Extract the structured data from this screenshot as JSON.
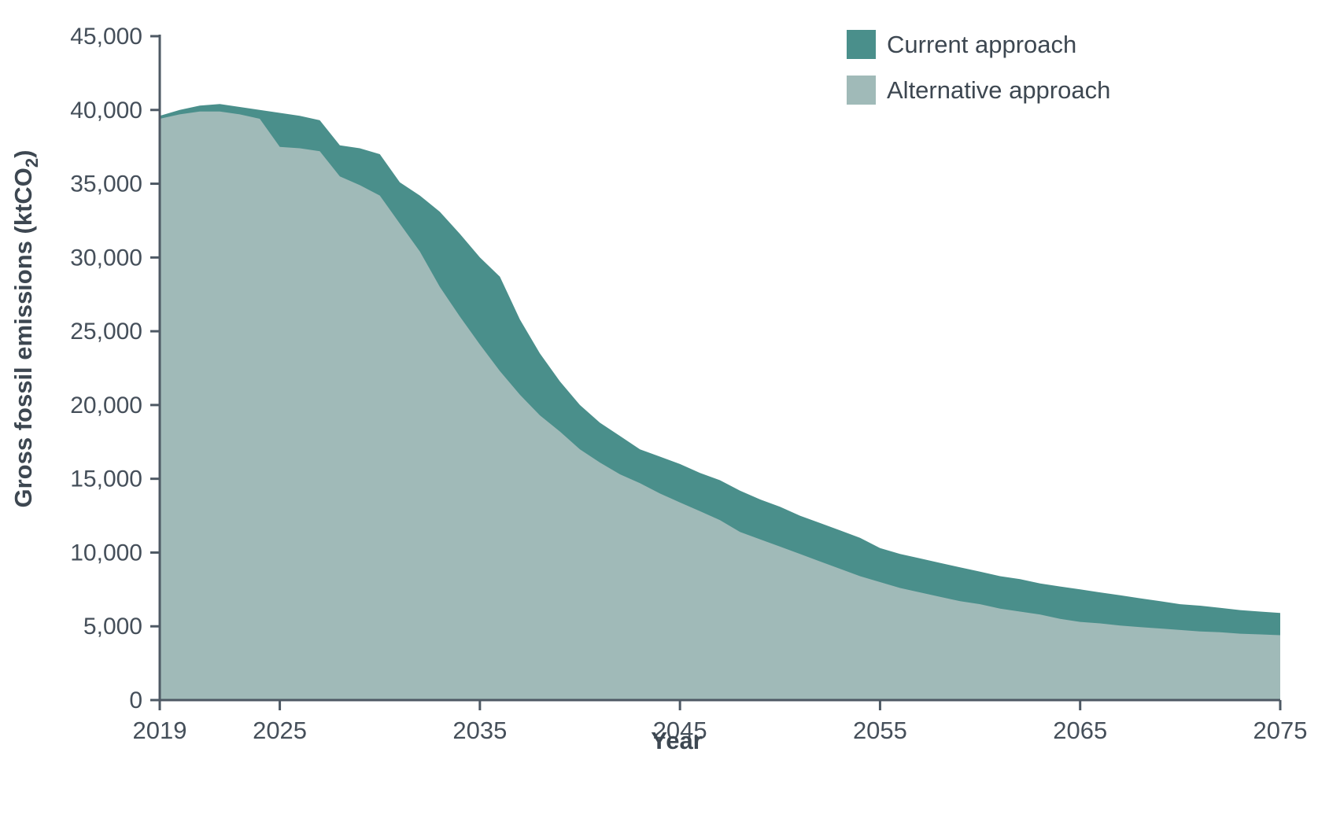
{
  "chart_data": {
    "type": "area",
    "title": "",
    "xlabel": "Year",
    "ylabel": "Gross fossil emissions (ktCO2)",
    "ylabel_parts": {
      "main": "Gross fossil emissions (ktCO",
      "sub": "2",
      "close": ")"
    },
    "xlim": [
      2019,
      2075
    ],
    "ylim": [
      0,
      45000
    ],
    "x_ticks": [
      2019,
      2025,
      2035,
      2045,
      2055,
      2065,
      2075
    ],
    "y_ticks": [
      0,
      5000,
      10000,
      15000,
      20000,
      25000,
      30000,
      35000,
      40000,
      45000
    ],
    "grid": false,
    "legend_position": "top-right",
    "x": [
      2019,
      2020,
      2021,
      2022,
      2023,
      2024,
      2025,
      2026,
      2027,
      2028,
      2029,
      2030,
      2031,
      2032,
      2033,
      2034,
      2035,
      2036,
      2037,
      2038,
      2039,
      2040,
      2041,
      2042,
      2043,
      2044,
      2045,
      2046,
      2047,
      2048,
      2049,
      2050,
      2051,
      2052,
      2053,
      2054,
      2055,
      2056,
      2057,
      2058,
      2059,
      2060,
      2061,
      2062,
      2063,
      2064,
      2065,
      2066,
      2067,
      2068,
      2069,
      2070,
      2071,
      2072,
      2073,
      2074,
      2075
    ],
    "series": [
      {
        "name": "Current approach",
        "color": "#4a8f8b",
        "values": [
          39600,
          40000,
          40300,
          40400,
          40200,
          40000,
          39800,
          39600,
          39300,
          37600,
          37400,
          37000,
          35100,
          34200,
          33100,
          31600,
          30000,
          28700,
          25800,
          23500,
          21600,
          20000,
          18800,
          17900,
          17000,
          16500,
          16000,
          15400,
          14900,
          14200,
          13600,
          13100,
          12500,
          12000,
          11500,
          11000,
          10300,
          9900,
          9600,
          9300,
          9000,
          8700,
          8400,
          8200,
          7900,
          7700,
          7500,
          7300,
          7100,
          6900,
          6700,
          6500,
          6400,
          6250,
          6100,
          6000,
          5900
        ]
      },
      {
        "name": "Alternative approach",
        "color": "#a0bab8",
        "values": [
          39400,
          39700,
          39900,
          39900,
          39700,
          39400,
          37500,
          37400,
          37200,
          35500,
          34900,
          34200,
          32300,
          30400,
          28000,
          26000,
          24100,
          22300,
          20700,
          19300,
          18200,
          17000,
          16100,
          15300,
          14700,
          14000,
          13400,
          12800,
          12200,
          11400,
          10900,
          10400,
          9900,
          9400,
          8900,
          8400,
          8000,
          7600,
          7300,
          7000,
          6700,
          6500,
          6200,
          6000,
          5800,
          5500,
          5300,
          5200,
          5050,
          4950,
          4850,
          4750,
          4650,
          4600,
          4500,
          4450,
          4400
        ]
      }
    ],
    "axis_color": "#4e5964",
    "tick_label_color": "#454f5a",
    "title_color": "#3d4751"
  }
}
